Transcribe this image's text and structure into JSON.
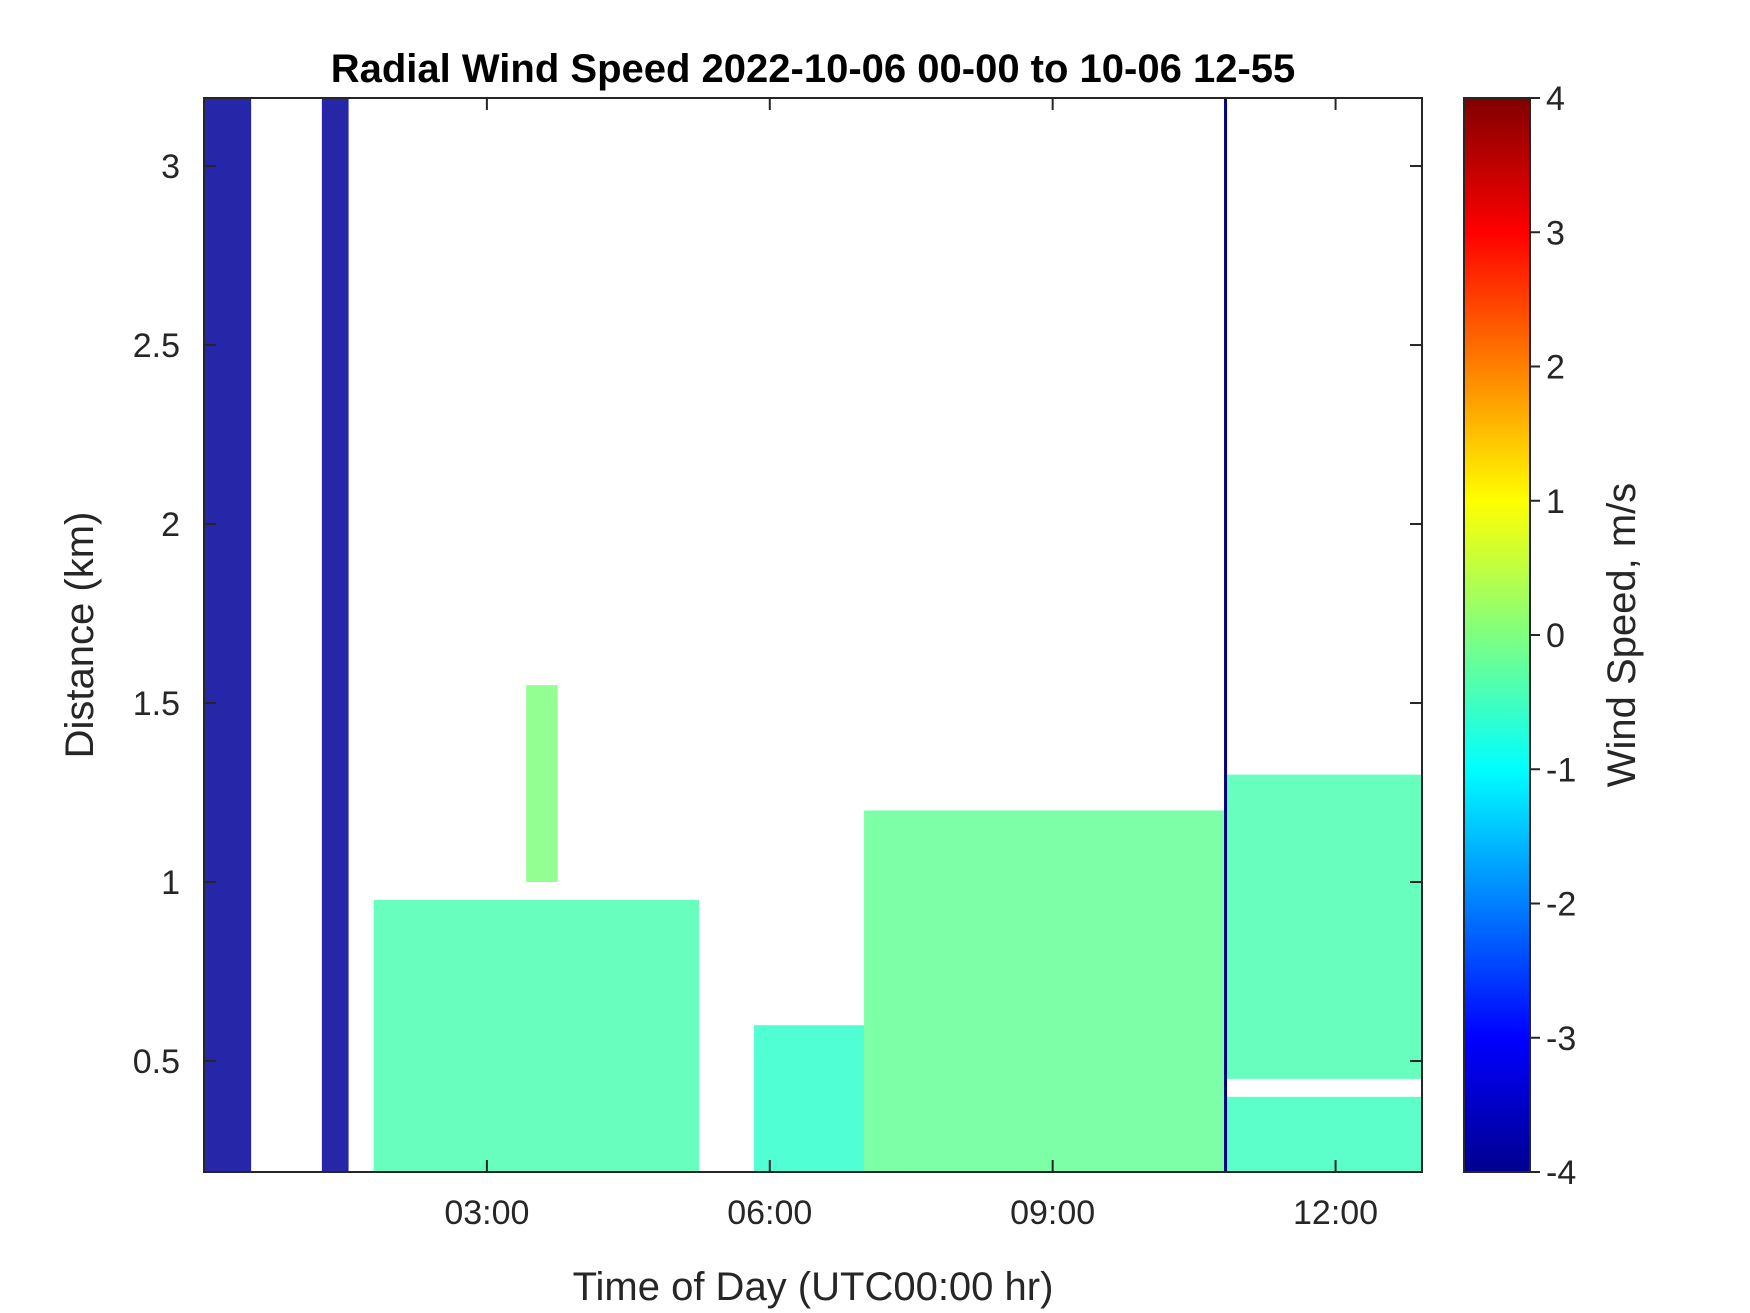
{
  "chart_data": {
    "type": "heatmap",
    "title": "Radial Wind Speed 2022-10-06 00-00 to 10-06 12-55",
    "xlabel": "Time of Day (UTC00:00 hr)",
    "ylabel": "Distance (km)",
    "xlim": [
      "00:00",
      "12:55"
    ],
    "ylim": [
      0.19,
      3.19
    ],
    "x_ticks": [
      "03:00",
      "06:00",
      "09:00",
      "12:00"
    ],
    "y_ticks": [
      "0.5",
      "1",
      "1.5",
      "2",
      "2.5",
      "3"
    ],
    "colorbar": {
      "label": "Wind Speed, m/s",
      "colormap": "jet",
      "range": [
        -4,
        4
      ],
      "ticks": [
        "-4",
        "-3",
        "-2",
        "-1",
        "0",
        "1",
        "2",
        "3",
        "4"
      ]
    },
    "regions": [
      {
        "time_start": "00:00",
        "time_end": "00:30",
        "dist_min": 0.19,
        "dist_max": 3.19,
        "value": -3.8
      },
      {
        "time_start": "01:15",
        "time_end": "01:32",
        "dist_min": 0.19,
        "dist_max": 3.19,
        "value": -3.8
      },
      {
        "time_start": "01:48",
        "time_end": "05:15",
        "dist_min": 0.19,
        "dist_max": 0.95,
        "value": -0.4
      },
      {
        "time_start": "03:25",
        "time_end": "03:45",
        "dist_min": 1.0,
        "dist_max": 1.55,
        "value": 0.0
      },
      {
        "time_start": "05:50",
        "time_end": "07:00",
        "dist_min": 0.19,
        "dist_max": 0.6,
        "value": -0.6
      },
      {
        "time_start": "07:00",
        "time_end": "10:50",
        "dist_min": 0.19,
        "dist_max": 1.2,
        "value": -0.2
      },
      {
        "time_start": "10:50",
        "time_end": "12:55",
        "dist_min": 0.45,
        "dist_max": 1.3,
        "value": -0.4
      },
      {
        "time_start": "10:50",
        "time_end": "12:55",
        "dist_min": 0.19,
        "dist_max": 0.4,
        "value": -0.5
      }
    ],
    "vertical_lines": [
      {
        "time": "10:50",
        "value": -4
      }
    ]
  }
}
